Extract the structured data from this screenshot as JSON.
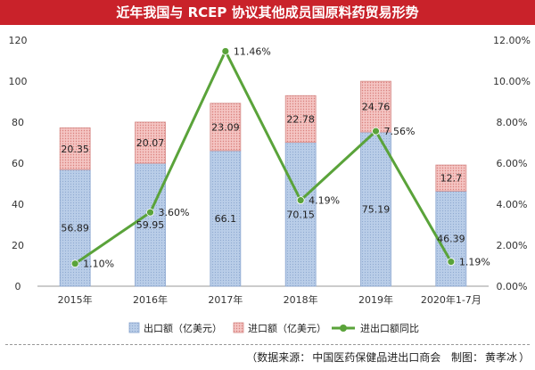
{
  "header": {
    "title": "近年我国与 RCEP 协议其他成员国原料药贸易形势"
  },
  "footer": {
    "source_open": "（数据来源：",
    "source_org": "中国医药保健品进出口商会",
    "credit_label": "制图：",
    "credit_name": "黄孝冰",
    "source_close": "）"
  },
  "colors": {
    "title_bg": "#c9222a",
    "export_fill": "#aec3e3",
    "import_fill": "#f2b7b5",
    "line": "#5aa33a"
  },
  "chart_data": {
    "type": "bar",
    "stacked": true,
    "categories": [
      "2015年",
      "2016年",
      "2017年",
      "2018年",
      "2019年",
      "2020年1-7月"
    ],
    "series": [
      {
        "name": "出口额（亿美元）",
        "type": "bar",
        "axis": "left",
        "values": [
          56.89,
          59.95,
          66.1,
          70.15,
          75.19,
          46.39
        ],
        "labels": [
          "56.89",
          "59.95",
          "66.1",
          "70.15",
          "75.19",
          "46.39"
        ]
      },
      {
        "name": "进口额（亿美元）",
        "type": "bar",
        "axis": "left",
        "values": [
          20.35,
          20.07,
          23.09,
          22.78,
          24.76,
          12.7
        ],
        "labels": [
          "20.35",
          "20.07",
          "23.09",
          "22.78",
          "24.76",
          "12.7"
        ]
      },
      {
        "name": "进出口额同比",
        "type": "line",
        "axis": "right",
        "values": [
          1.1,
          3.6,
          11.46,
          4.19,
          7.56,
          1.19
        ],
        "labels": [
          "1.10%",
          "3.60%",
          "11.46%",
          "4.19%",
          "7.56%",
          "1.19%"
        ]
      }
    ],
    "y_left": {
      "min": 0,
      "max": 120,
      "ticks": [
        "0",
        "20",
        "40",
        "60",
        "80",
        "100",
        "120"
      ]
    },
    "y_right": {
      "min": 0,
      "max": 12,
      "ticks": [
        "0.00%",
        "2.00%",
        "4.00%",
        "6.00%",
        "8.00%",
        "10.00%",
        "12.00%"
      ]
    },
    "grid": false,
    "legend_position": "bottom"
  }
}
